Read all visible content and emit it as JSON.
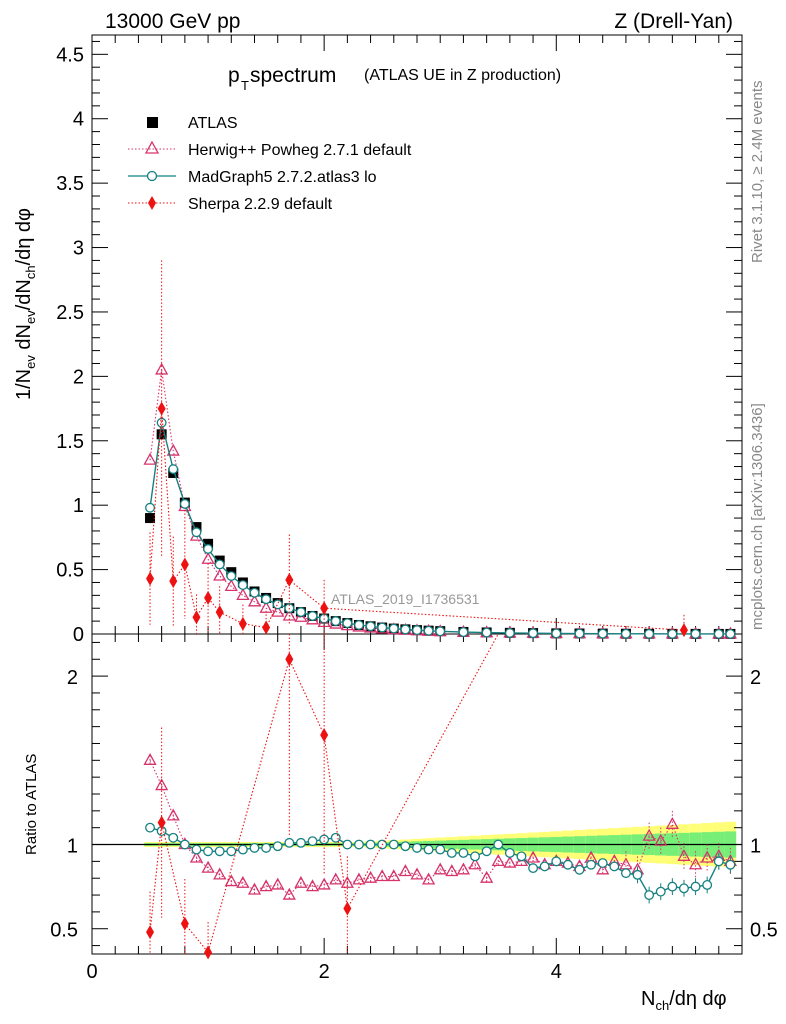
{
  "header": {
    "left": "13000 GeV pp",
    "right": "Z (Drell-Yan)"
  },
  "side_labels": {
    "rivet": "Rivet 3.1.10, ≥ 2.4M events",
    "mcplots": "mcplots.cern.ch [arXiv:1306.3436]"
  },
  "chart_data": [
    {
      "type": "scatter",
      "panel": "main",
      "title_main": "p",
      "title_sub": "T",
      "title_rest": " spectrum",
      "title_paren": "(ATLAS UE in Z production)",
      "watermark": "ATLAS_2019_I1736531",
      "ylabel": "1/N_ev dN_ev/dN_ch/dη dφ",
      "xlabel": "N_ch/dη dφ",
      "xlim": [
        0,
        5.6
      ],
      "ylim": [
        0,
        4.65
      ],
      "yticks": [
        "0",
        "0.5",
        "1",
        "1.5",
        "2",
        "2.5",
        "3",
        "3.5",
        "4",
        "4.5"
      ],
      "ytick_values": [
        0,
        0.5,
        1,
        1.5,
        2,
        2.5,
        3,
        3.5,
        4,
        4.5
      ],
      "legend": [
        {
          "label": "ATLAS"
        },
        {
          "label": "Herwig++ Powheg 2.7.1 default"
        },
        {
          "label": "MadGraph5 2.7.2.atlas3 lo"
        },
        {
          "label": "Sherpa 2.2.9 default"
        }
      ],
      "series": [
        {
          "name": "ATLAS",
          "color": "#000000",
          "x": [
            0.5,
            0.6,
            0.7,
            0.8,
            0.9,
            1.0,
            1.1,
            1.2,
            1.3,
            1.4,
            1.5,
            1.6,
            1.7,
            1.8,
            1.9,
            2.0,
            2.1,
            2.2,
            2.3,
            2.4,
            2.5,
            2.6,
            2.7,
            2.8,
            2.9,
            3.0,
            3.2,
            3.4,
            3.6,
            3.8,
            4.0,
            4.2,
            4.4,
            4.6,
            4.8,
            5.0,
            5.2,
            5.4,
            5.5
          ],
          "values": [
            0.9,
            1.55,
            1.25,
            1.02,
            0.83,
            0.7,
            0.57,
            0.48,
            0.4,
            0.33,
            0.28,
            0.24,
            0.2,
            0.17,
            0.14,
            0.12,
            0.1,
            0.085,
            0.07,
            0.06,
            0.05,
            0.042,
            0.036,
            0.03,
            0.026,
            0.022,
            0.016,
            0.012,
            0.009,
            0.007,
            0.005,
            0.004,
            0.003,
            0.002,
            0.0015,
            0.001,
            0.0008,
            0.0006,
            0.0005
          ]
        },
        {
          "name": "Herwig++ Powheg 2.7.1 default",
          "color": "#d6336c",
          "x": [
            0.5,
            0.6,
            0.7,
            0.8,
            0.9,
            1.0,
            1.1,
            1.2,
            1.3,
            1.4,
            1.5,
            1.6,
            1.7,
            1.8,
            1.9,
            2.0,
            2.1,
            2.2,
            2.3,
            2.4,
            2.5,
            2.6,
            2.7,
            2.8,
            2.9,
            3.0,
            3.2,
            3.4,
            3.6,
            3.8,
            4.0,
            4.2,
            4.4,
            4.6,
            4.8,
            5.0,
            5.2,
            5.4,
            5.5
          ],
          "values": [
            1.35,
            2.05,
            1.42,
            0.99,
            0.76,
            0.58,
            0.45,
            0.37,
            0.3,
            0.25,
            0.2,
            0.17,
            0.14,
            0.13,
            0.11,
            0.09,
            0.077,
            0.065,
            0.055,
            0.047,
            0.04,
            0.034,
            0.029,
            0.025,
            0.022,
            0.019,
            0.014,
            0.01,
            0.008,
            0.006,
            0.004,
            0.003,
            0.0025,
            0.0018,
            0.0014,
            0.001,
            0.0008,
            0.0006,
            0.0005
          ]
        },
        {
          "name": "MadGraph5 2.7.2.atlas3 lo",
          "color": "#168080",
          "x": [
            0.5,
            0.6,
            0.7,
            0.8,
            0.9,
            1.0,
            1.1,
            1.2,
            1.3,
            1.4,
            1.5,
            1.6,
            1.7,
            1.8,
            1.9,
            2.0,
            2.1,
            2.2,
            2.3,
            2.4,
            2.5,
            2.6,
            2.7,
            2.8,
            2.9,
            3.0,
            3.2,
            3.4,
            3.6,
            3.8,
            4.0,
            4.2,
            4.4,
            4.6,
            4.8,
            5.0,
            5.2,
            5.4,
            5.5
          ],
          "values": [
            0.98,
            1.64,
            1.28,
            1.01,
            0.79,
            0.66,
            0.54,
            0.45,
            0.38,
            0.32,
            0.27,
            0.23,
            0.2,
            0.17,
            0.14,
            0.12,
            0.1,
            0.084,
            0.07,
            0.06,
            0.05,
            0.042,
            0.035,
            0.03,
            0.025,
            0.021,
            0.015,
            0.011,
            0.008,
            0.006,
            0.0045,
            0.0035,
            0.0025,
            0.0017,
            0.0011,
            0.0008,
            0.0006,
            0.0005,
            0.0004
          ]
        },
        {
          "name": "Sherpa 2.2.9 default",
          "color": "#ee1111",
          "x": [
            0.5,
            0.6,
            0.7,
            0.8,
            0.9,
            1.0,
            1.1,
            1.3,
            1.5,
            1.7,
            2.0,
            5.1
          ],
          "values": [
            0.43,
            1.75,
            0.41,
            0.54,
            0.13,
            0.28,
            0.17,
            0.08,
            0.05,
            0.42,
            0.2,
            0.03
          ]
        }
      ]
    },
    {
      "type": "scatter",
      "panel": "ratio",
      "ylabel": "Ratio to ATLAS",
      "xlabel": "N_ch/dη dφ",
      "xlim": [
        0,
        5.6
      ],
      "ylim": [
        0.35,
        2.25
      ],
      "yticks": [
        "0.5",
        "1",
        "2"
      ],
      "ytick_values": [
        0.5,
        1,
        2
      ],
      "xticks": [
        "0",
        "2",
        "4"
      ],
      "xtick_values": [
        0,
        2,
        4
      ],
      "series": [
        {
          "name": "Herwig++ Powheg 2.7.1 default",
          "color": "#d6336c",
          "x": [
            0.5,
            0.6,
            0.7,
            0.8,
            0.9,
            1.0,
            1.1,
            1.2,
            1.3,
            1.4,
            1.5,
            1.6,
            1.7,
            1.8,
            1.9,
            2.0,
            2.1,
            2.2,
            2.3,
            2.4,
            2.5,
            2.6,
            2.7,
            2.8,
            2.9,
            3.0,
            3.1,
            3.2,
            3.3,
            3.4,
            3.5,
            3.6,
            3.7,
            3.8,
            3.9,
            4.0,
            4.1,
            4.2,
            4.3,
            4.4,
            4.5,
            4.6,
            4.7,
            4.8,
            4.9,
            5.0,
            5.1,
            5.2,
            5.3,
            5.4,
            5.5
          ],
          "values": [
            1.5,
            1.35,
            1.17,
            1.0,
            0.92,
            0.86,
            0.82,
            0.78,
            0.77,
            0.73,
            0.75,
            0.76,
            0.7,
            0.77,
            0.75,
            0.76,
            0.79,
            0.77,
            0.79,
            0.8,
            0.81,
            0.81,
            0.84,
            0.82,
            0.79,
            0.85,
            0.84,
            0.85,
            0.88,
            0.8,
            0.9,
            0.89,
            0.9,
            0.92,
            0.88,
            0.9,
            0.89,
            0.87,
            0.92,
            0.85,
            0.9,
            0.88,
            0.85,
            1.05,
            1.02,
            1.12,
            0.93,
            0.88,
            0.92,
            0.93,
            0.9
          ]
        },
        {
          "name": "MadGraph5 2.7.2.atlas3 lo",
          "color": "#168080",
          "x": [
            0.5,
            0.6,
            0.7,
            0.8,
            0.9,
            1.0,
            1.1,
            1.2,
            1.3,
            1.4,
            1.5,
            1.6,
            1.7,
            1.8,
            1.9,
            2.0,
            2.1,
            2.2,
            2.3,
            2.4,
            2.5,
            2.6,
            2.7,
            2.8,
            2.9,
            3.0,
            3.1,
            3.2,
            3.3,
            3.4,
            3.5,
            3.6,
            3.7,
            3.8,
            3.9,
            4.0,
            4.1,
            4.2,
            4.3,
            4.4,
            4.5,
            4.6,
            4.7,
            4.8,
            4.9,
            5.0,
            5.1,
            5.2,
            5.3,
            5.4,
            5.5
          ],
          "values": [
            1.1,
            1.08,
            1.04,
            1.0,
            0.97,
            0.96,
            0.96,
            0.96,
            0.97,
            0.98,
            0.98,
            0.99,
            1.01,
            1.01,
            1.02,
            1.03,
            1.04,
            1.0,
            1.0,
            1.0,
            1.0,
            1.0,
            0.99,
            0.98,
            0.97,
            0.97,
            0.95,
            0.95,
            0.93,
            0.96,
            1.0,
            0.95,
            0.93,
            0.86,
            0.87,
            0.9,
            0.88,
            0.85,
            0.88,
            0.89,
            0.87,
            0.83,
            0.82,
            0.7,
            0.72,
            0.75,
            0.74,
            0.75,
            0.76,
            0.9,
            0.88
          ]
        },
        {
          "name": "Sherpa 2.2.9 default",
          "color": "#ee1111",
          "x": [
            0.5,
            0.6,
            0.8,
            1.0,
            1.7,
            2.0,
            2.2
          ],
          "values": [
            0.48,
            1.13,
            0.53,
            0.36,
            2.1,
            1.65,
            0.62
          ]
        }
      ],
      "bands": {
        "inner_color": "#77ee77",
        "outer_color": "#ffff77",
        "reference": 1
      }
    }
  ]
}
